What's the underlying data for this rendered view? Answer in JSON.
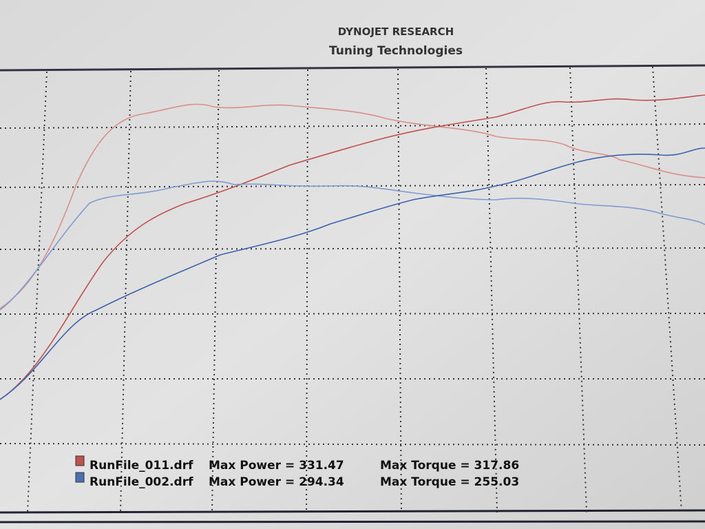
{
  "header": {
    "title": "DYNOJET RESEARCH",
    "subtitle": "Tuning Technologies"
  },
  "legend": {
    "entries": [
      {
        "file": "RunFile_011.drf",
        "power": "Max Power = 331.47",
        "torque": "Max Torque = 317.86",
        "color": "#c0504d"
      },
      {
        "file": "RunFile_002.drf",
        "power": "Max Power = 294.34",
        "torque": "Max Torque = 255.03",
        "color": "#4a6fb5"
      }
    ]
  }
}
